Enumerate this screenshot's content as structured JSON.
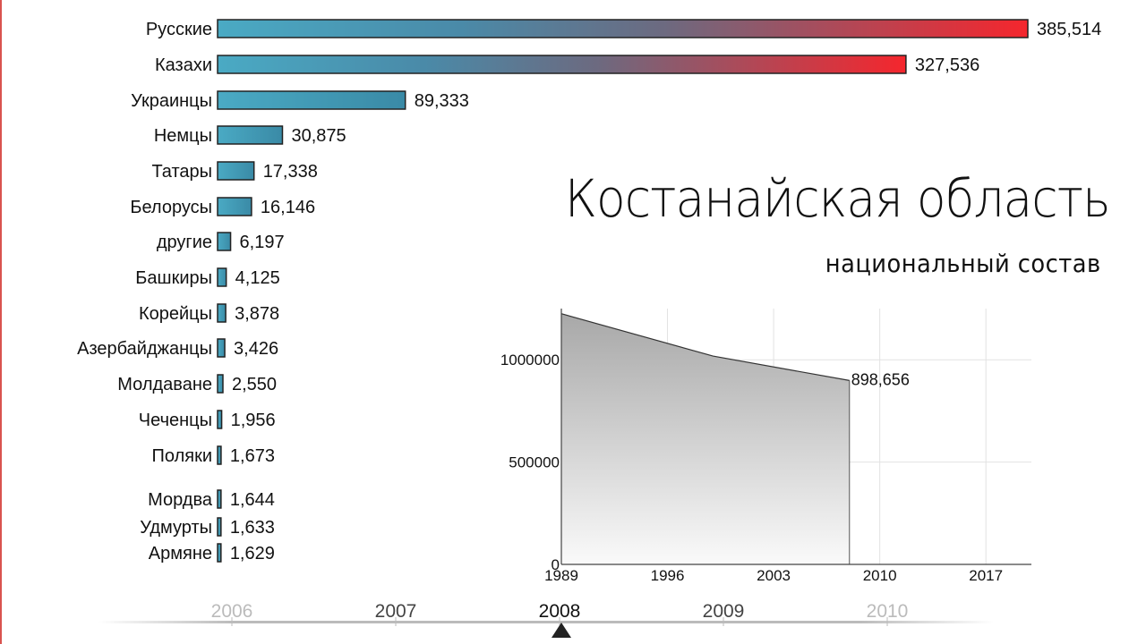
{
  "title": "Костанайская область",
  "subtitle": "национальный состав",
  "chart_data": [
    {
      "type": "bar",
      "orientation": "horizontal",
      "categories": [
        "Русские",
        "Казахи",
        "Украинцы",
        "Немцы",
        "Татары",
        "Белорусы",
        "другие",
        "Башкиры",
        "Корейцы",
        "Азербайджанцы",
        "Молдаване",
        "Чеченцы",
        "Поляки",
        "Мордва",
        "Удмурты",
        "Армяне"
      ],
      "values": [
        385514,
        327536,
        89333,
        30875,
        17338,
        16146,
        6197,
        4125,
        3878,
        3426,
        2550,
        1956,
        1673,
        1644,
        1633,
        1629
      ],
      "value_labels": [
        "385,514",
        "327,536",
        "89,333",
        "30,875",
        "17,338",
        "16,146",
        "6,197",
        "4,125",
        "3,878",
        "3,426",
        "2,550",
        "1,956",
        "1,673",
        "1,644",
        "1,633",
        "1,629"
      ],
      "colors": {
        "base": "#4aaac4",
        "accent": "#f5262d",
        "stroke": "#222222"
      }
    },
    {
      "type": "area",
      "x": [
        1989,
        1999,
        2008
      ],
      "y": [
        1225000,
        1018000,
        898656
      ],
      "end_label": "898,656",
      "xlim": [
        1989,
        2020
      ],
      "ylim": [
        0,
        1250000
      ],
      "xticks": [
        "1989",
        "1996",
        "2003",
        "2010",
        "2017"
      ],
      "yticks": [
        "0",
        "500000",
        "1000000"
      ],
      "grid": true
    }
  ],
  "timeline": {
    "years": [
      "2006",
      "2007",
      "2008",
      "2009",
      "2010"
    ],
    "current": "2008"
  }
}
